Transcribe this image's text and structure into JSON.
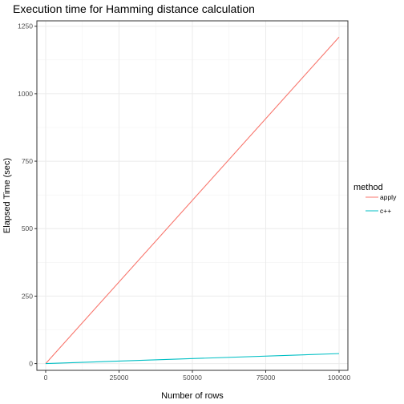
{
  "chart_data": {
    "type": "line",
    "title": "Execution time for Hamming distance calculation",
    "xlabel": "Number of rows",
    "ylabel": "Elapsed Time (sec)",
    "xlim": [
      -3000,
      103000
    ],
    "ylim": [
      -25,
      1270
    ],
    "x_ticks": [
      0,
      25000,
      50000,
      75000,
      100000
    ],
    "x_tick_labels": [
      "0",
      "25000",
      "50000",
      "75000",
      "100000"
    ],
    "y_ticks": [
      0,
      250,
      500,
      750,
      1000,
      1250
    ],
    "y_tick_labels": [
      "0",
      "250",
      "500",
      "750",
      "1000",
      "1250"
    ],
    "grid": true,
    "legend": {
      "title": "method",
      "position": "right"
    },
    "series": [
      {
        "name": "apply",
        "color": "#F8766D",
        "x": [
          0,
          100000
        ],
        "y": [
          0,
          1210
        ]
      },
      {
        "name": "c++",
        "color": "#00BFC4",
        "x": [
          0,
          100000
        ],
        "y": [
          0,
          37
        ]
      }
    ]
  }
}
